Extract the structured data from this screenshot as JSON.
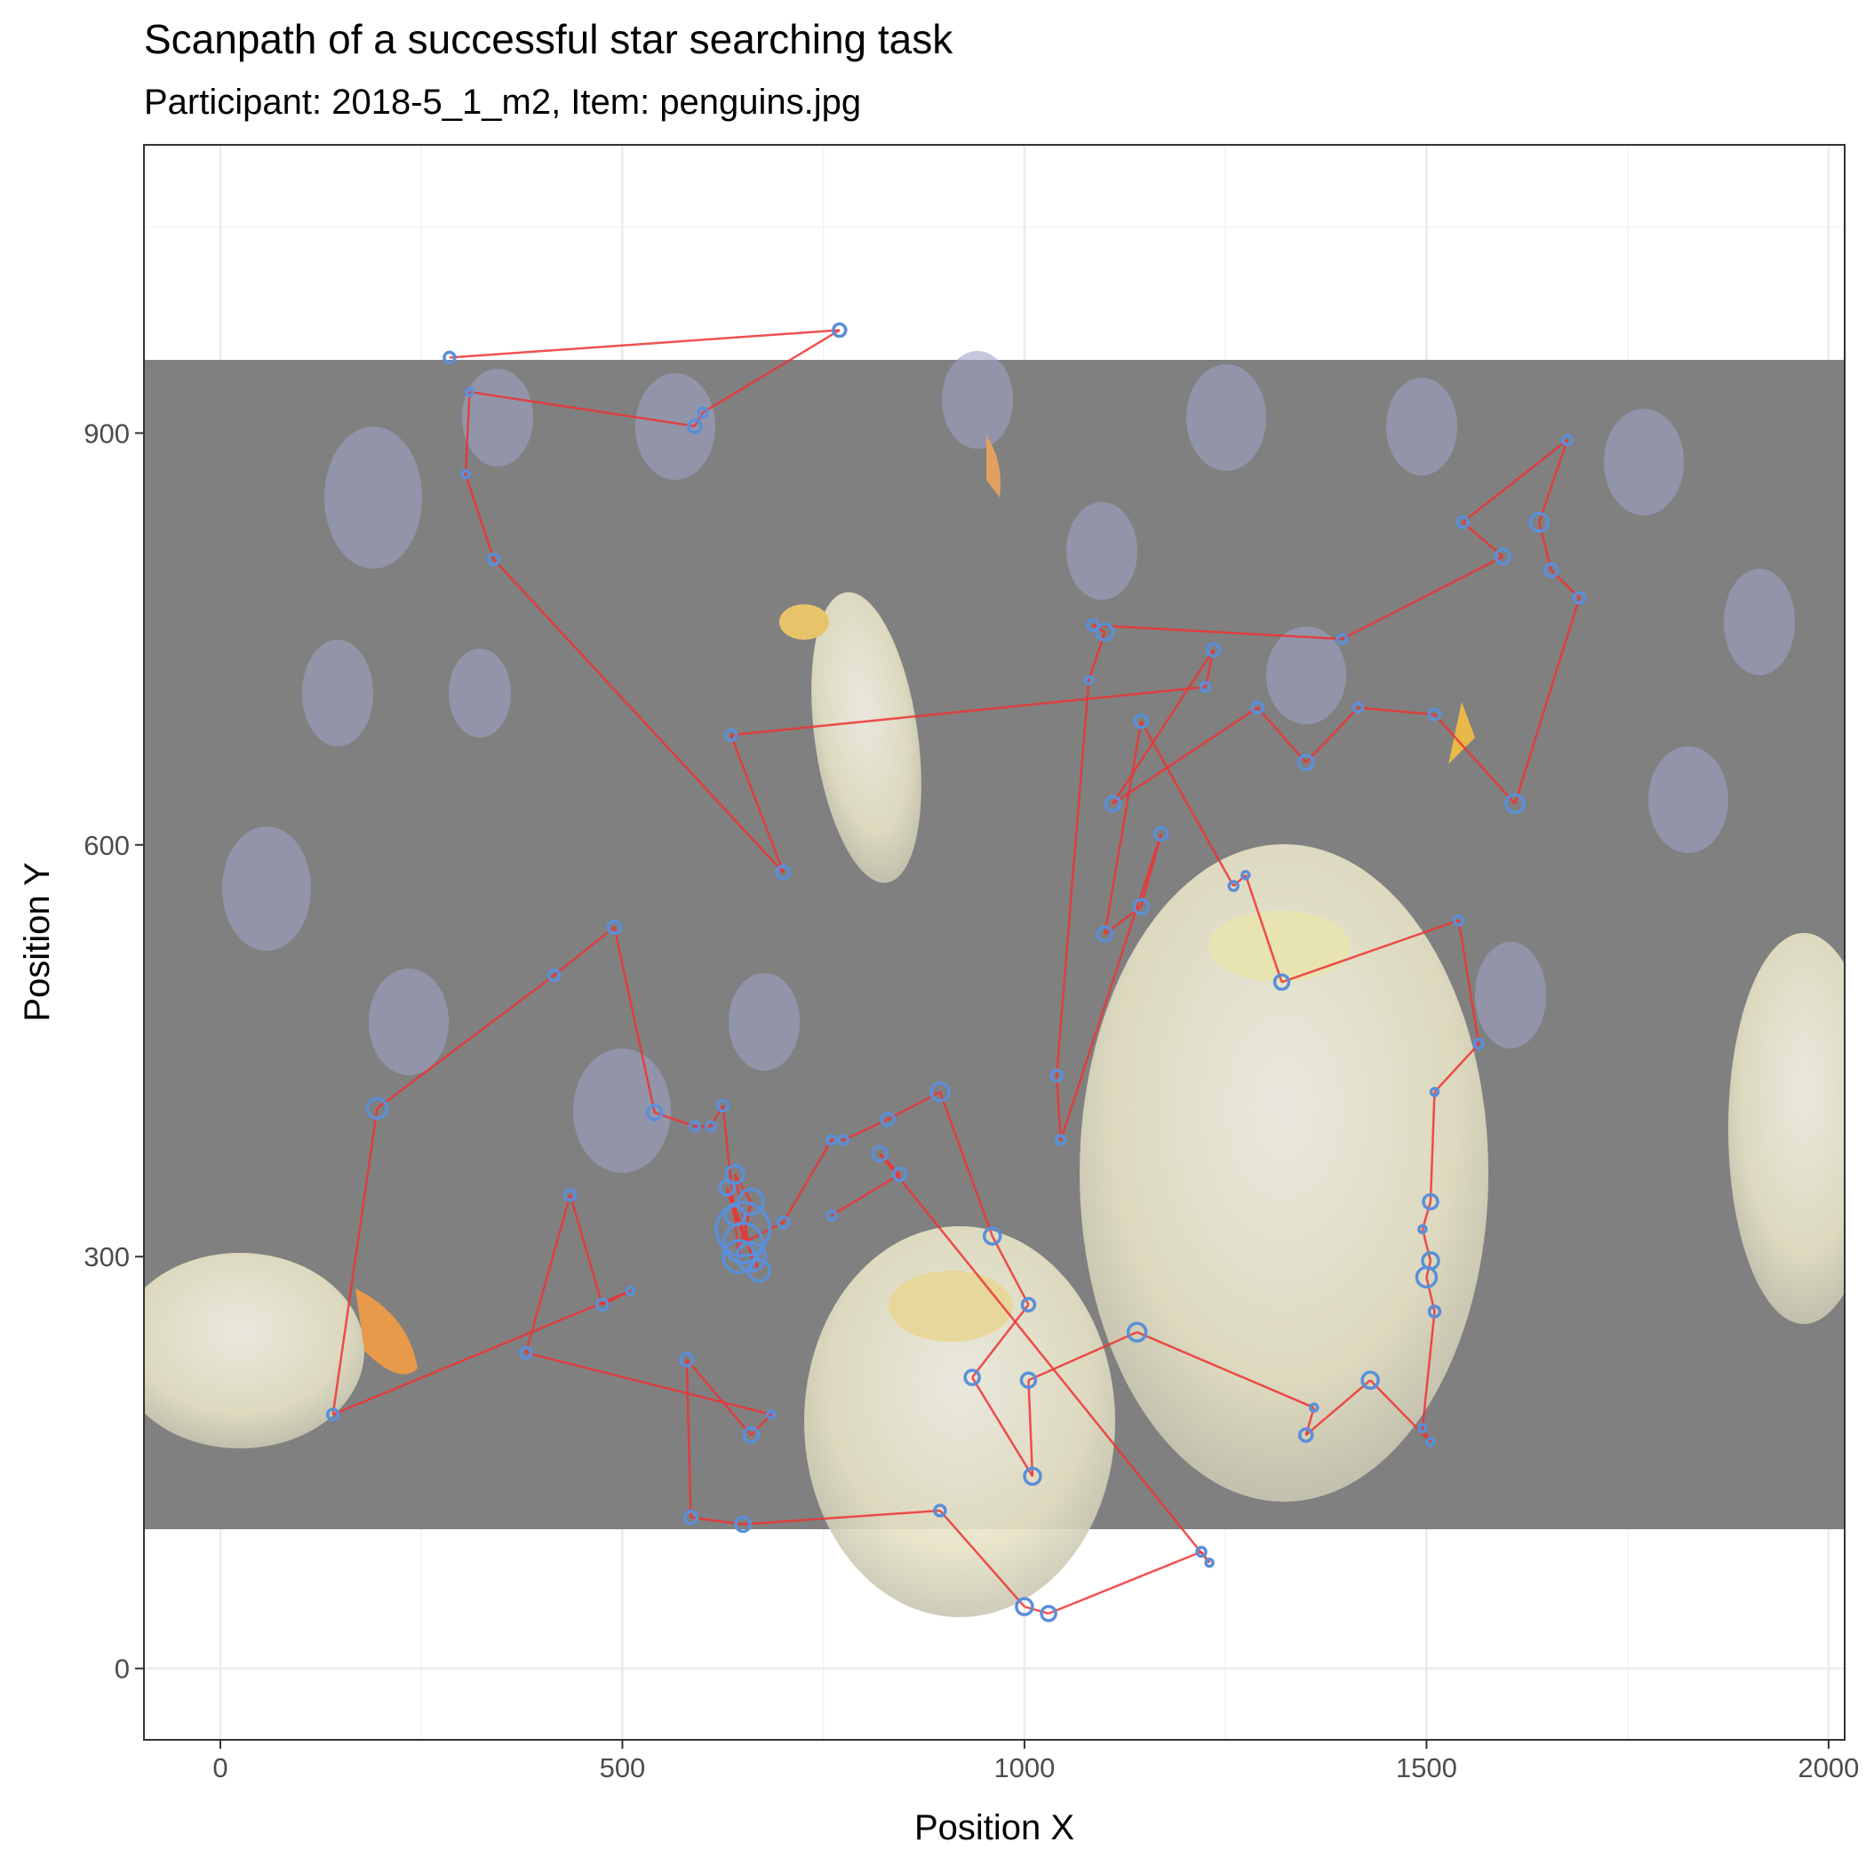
{
  "chart_data": {
    "type": "scatter",
    "title": "Scanpath of a successful star searching task",
    "subtitle": "Participant: 2018-5_1_m2, Item: penguins.jpg",
    "xlabel": "Position X",
    "ylabel": "Position Y",
    "xlim": [
      -95,
      2020
    ],
    "ylim": [
      -52,
      1110
    ],
    "x_ticks": [
      0,
      500,
      1000,
      1500,
      2000
    ],
    "y_ticks": [
      0,
      300,
      600,
      900
    ],
    "x_tick_labels": [
      "0",
      "500",
      "1000",
      "1500",
      "2000"
    ],
    "y_tick_labels": [
      "0",
      "300",
      "600",
      "900"
    ],
    "grid": true,
    "background_image": {
      "description": "penguin colony photo",
      "x_range": [
        -95,
        2020
      ],
      "y_range": [
        105,
        970
      ]
    },
    "colors": {
      "path": "#ee3333",
      "fixation": "#5b8fd8",
      "panel_border": "#333333",
      "grid": "#ebebeb",
      "image_overlay": "#808080"
    },
    "series": [
      {
        "values": [
          [
            285,
            955,
            6
          ],
          [
            770,
            975,
            7
          ],
          [
            600,
            915,
            5
          ],
          [
            590,
            905,
            7
          ],
          [
            310,
            930,
            4
          ],
          [
            305,
            870,
            4
          ],
          [
            340,
            808,
            6
          ],
          [
            700,
            580,
            7
          ],
          [
            635,
            680,
            6
          ],
          [
            1225,
            715,
            5
          ],
          [
            1235,
            742,
            7
          ],
          [
            1110,
            630,
            8
          ],
          [
            1290,
            700,
            6
          ],
          [
            1350,
            660,
            8
          ],
          [
            1415,
            700,
            5
          ],
          [
            1510,
            695,
            6
          ],
          [
            1610,
            630,
            10
          ],
          [
            1690,
            780,
            6
          ],
          [
            1655,
            800,
            7
          ],
          [
            1640,
            835,
            10
          ],
          [
            1675,
            895,
            5
          ],
          [
            1545,
            835,
            6
          ],
          [
            1595,
            810,
            8
          ],
          [
            1395,
            750,
            5
          ],
          [
            1085,
            760,
            6
          ],
          [
            1100,
            755,
            9
          ],
          [
            1080,
            720,
            4
          ],
          [
            1040,
            432,
            6
          ],
          [
            1045,
            385,
            5
          ],
          [
            1170,
            608,
            7
          ],
          [
            1145,
            555,
            8
          ],
          [
            1100,
            535,
            8
          ],
          [
            1145,
            690,
            7
          ],
          [
            1260,
            570,
            5
          ],
          [
            1275,
            578,
            4
          ],
          [
            1320,
            500,
            8
          ],
          [
            1540,
            545,
            5
          ],
          [
            1565,
            455,
            5
          ],
          [
            1510,
            420,
            4
          ],
          [
            1505,
            340,
            8
          ],
          [
            1495,
            320,
            4
          ],
          [
            1505,
            297,
            9
          ],
          [
            1500,
            285,
            11
          ],
          [
            1510,
            260,
            6
          ],
          [
            1495,
            175,
            4
          ],
          [
            1505,
            165,
            4
          ],
          [
            1430,
            210,
            9
          ],
          [
            1350,
            170,
            7
          ],
          [
            1360,
            190,
            4
          ],
          [
            1140,
            245,
            10
          ],
          [
            1005,
            210,
            8
          ],
          [
            1010,
            140,
            9
          ],
          [
            935,
            212,
            8
          ],
          [
            1005,
            265,
            7
          ],
          [
            960,
            315,
            9
          ],
          [
            895,
            420,
            10
          ],
          [
            830,
            400,
            7
          ],
          [
            775,
            385,
            5
          ],
          [
            760,
            385,
            5
          ],
          [
            700,
            325,
            6
          ],
          [
            650,
            310,
            22
          ],
          [
            660,
            340,
            14
          ],
          [
            640,
            360,
            10
          ],
          [
            660,
            300,
            16
          ],
          [
            670,
            290,
            12
          ],
          [
            640,
            330,
            11
          ],
          [
            630,
            350,
            8
          ],
          [
            650,
            320,
            30
          ],
          [
            645,
            300,
            18
          ],
          [
            625,
            410,
            6
          ],
          [
            610,
            395,
            5
          ],
          [
            590,
            395,
            5
          ],
          [
            540,
            405,
            8
          ],
          [
            490,
            540,
            7
          ],
          [
            415,
            505,
            6
          ],
          [
            195,
            408,
            11
          ],
          [
            140,
            185,
            6
          ],
          [
            510,
            275,
            4
          ],
          [
            475,
            265,
            6
          ],
          [
            435,
            345,
            6
          ],
          [
            380,
            230,
            6
          ],
          [
            685,
            185,
            4
          ],
          [
            660,
            170,
            8
          ],
          [
            580,
            225,
            7
          ],
          [
            585,
            110,
            7
          ],
          [
            650,
            105,
            8
          ],
          [
            895,
            115,
            6
          ],
          [
            1000,
            45,
            9
          ],
          [
            1030,
            40,
            8
          ],
          [
            1220,
            85,
            5
          ],
          [
            1230,
            77,
            4
          ],
          [
            820,
            375,
            8
          ],
          [
            845,
            360,
            7
          ],
          [
            760,
            330,
            5
          ]
        ]
      }
    ]
  }
}
